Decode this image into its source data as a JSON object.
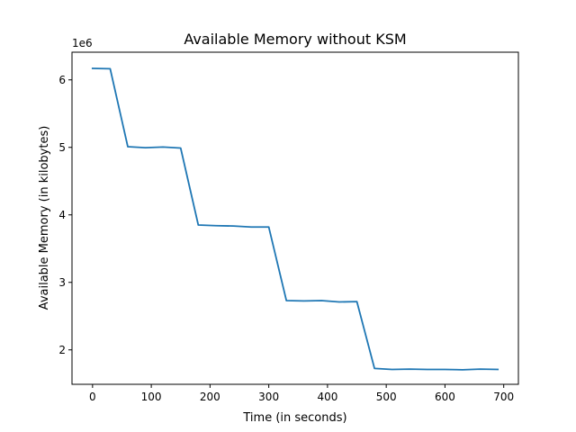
{
  "chart_data": {
    "type": "line",
    "title": "Available Memory without KSM",
    "xlabel": "Time (in seconds)",
    "ylabel": "Available Memory (in kilobytes)",
    "y_offset_label": "1e6",
    "xlim": [
      -35,
      725
    ],
    "ylim": [
      1.49,
      6.41
    ],
    "x_ticks": [
      0,
      100,
      200,
      300,
      400,
      500,
      600,
      700
    ],
    "x_tick_labels": [
      "0",
      "100",
      "200",
      "300",
      "400",
      "500",
      "600",
      "700"
    ],
    "y_ticks": [
      2,
      3,
      4,
      5,
      6
    ],
    "y_tick_labels": [
      "2",
      "3",
      "4",
      "5",
      "6"
    ],
    "grid": false,
    "color": "#1f77b4",
    "x": [
      0,
      30,
      60,
      90,
      120,
      150,
      180,
      210,
      240,
      270,
      300,
      330,
      360,
      390,
      420,
      450,
      480,
      510,
      540,
      570,
      600,
      630,
      660,
      690
    ],
    "series": [
      {
        "values": [
          6.17,
          6.165,
          5.01,
          4.995,
          5.005,
          4.99,
          3.85,
          3.84,
          3.835,
          3.82,
          3.82,
          2.73,
          2.725,
          2.73,
          2.71,
          2.715,
          1.725,
          1.71,
          1.715,
          1.71,
          1.71,
          1.705,
          1.715,
          1.71
        ]
      }
    ]
  }
}
